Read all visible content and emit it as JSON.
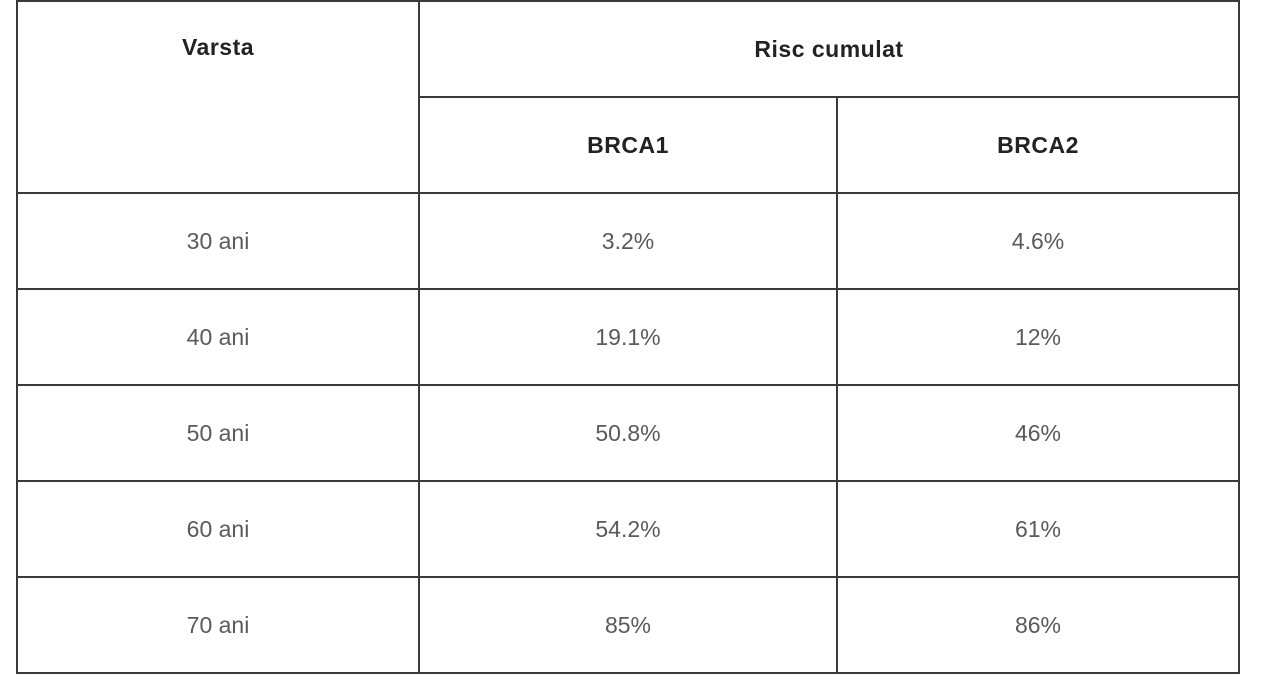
{
  "header": {
    "age": "Varsta",
    "risk": "Risc cumulat",
    "genes": [
      "BRCA1",
      "BRCA2"
    ]
  },
  "table": {
    "rows": [
      [
        "30 ani",
        "3.2%",
        "4.6%"
      ],
      [
        "40 ani",
        "19.1%",
        "12%"
      ],
      [
        "50 ani",
        "50.8%",
        "46%"
      ],
      [
        "60 ani",
        "54.2%",
        "61%"
      ],
      [
        "70 ani",
        "85%",
        "86%"
      ]
    ]
  }
}
